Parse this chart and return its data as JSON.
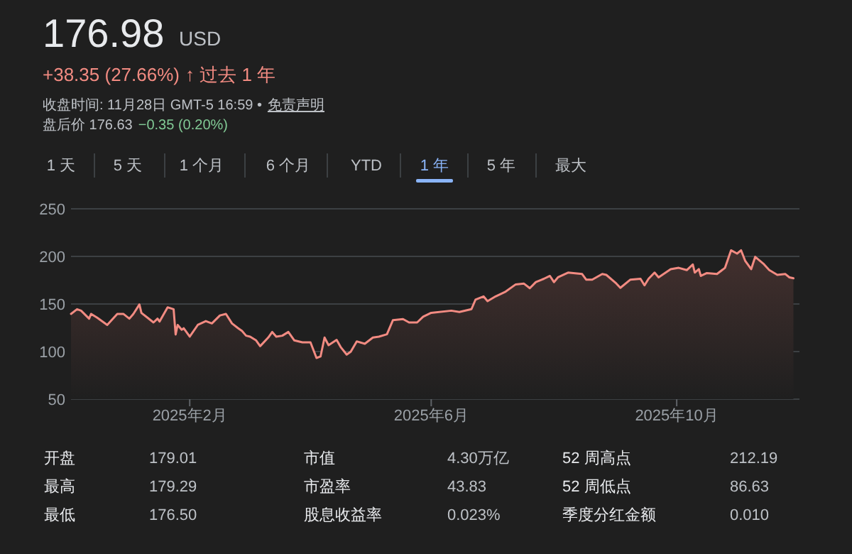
{
  "chart_data": {
    "type": "area",
    "title": "176.98",
    "annotations": [
      "USD",
      "+38.35 (27.66%)",
      "↑ 过去 1 年",
      "收盘时间: 11月28日 GMT-5 16:59 •",
      "免责声明",
      "盘后价 176.63",
      "−0.35 (0.20%)",
      "1 天",
      "5 天",
      "1 个月",
      "6 个月",
      "YTD",
      "1 年",
      "5 年",
      "最大",
      "开盘",
      "179.01",
      "市值",
      "4.30万亿",
      "52 周高点",
      "212.19",
      "最高",
      "179.29",
      "市盈率",
      "43.83",
      "52 周低点",
      "86.63",
      "最低",
      "176.50",
      "股息收益率",
      "0.023%",
      "季度分红金额",
      "0.010"
    ],
    "x": [
      "2024-12-04",
      "2024-12-07",
      "2024-12-09",
      "2024-12-13",
      "2024-12-14",
      "2024-12-17",
      "2024-12-22",
      "2024-12-27",
      "2024-12-30",
      "2025-01-02",
      "2025-01-04",
      "2025-01-07",
      "2025-01-08",
      "2025-01-11",
      "2025-01-14",
      "2025-01-16",
      "2025-01-17",
      "2025-01-21",
      "2025-01-24",
      "2025-01-25",
      "2025-01-26",
      "2025-01-28",
      "2025-01-29",
      "2025-02-01",
      "2025-02-05",
      "2025-02-09",
      "2025-02-12",
      "2025-02-16",
      "2025-02-19",
      "2025-02-22",
      "2025-02-25",
      "2025-02-27",
      "2025-03-01",
      "2025-03-03",
      "2025-03-06",
      "2025-03-08",
      "2025-03-12",
      "2025-03-14",
      "2025-03-16",
      "2025-03-19",
      "2025-03-22",
      "2025-03-25",
      "2025-03-29",
      "2025-04-02",
      "2025-04-05",
      "2025-04-07",
      "2025-04-09",
      "2025-04-11",
      "2025-04-15",
      "2025-04-17",
      "2025-04-20",
      "2025-04-22",
      "2025-04-25",
      "2025-04-29",
      "2025-05-03",
      "2025-05-06",
      "2025-05-10",
      "2025-05-13",
      "2025-05-18",
      "2025-05-21",
      "2025-05-25",
      "2025-05-28",
      "2025-06-01",
      "2025-06-11",
      "2025-06-15",
      "2025-06-21",
      "2025-06-23",
      "2025-06-27",
      "2025-06-29",
      "2025-07-03",
      "2025-07-08",
      "2025-07-13",
      "2025-07-17",
      "2025-07-20",
      "2025-07-23",
      "2025-07-27",
      "2025-07-30",
      "2025-08-01",
      "2025-08-03",
      "2025-08-08",
      "2025-08-15",
      "2025-08-17",
      "2025-08-20",
      "2025-08-25",
      "2025-08-27",
      "2025-09-01",
      "2025-09-03",
      "2025-09-08",
      "2025-09-13",
      "2025-09-15",
      "2025-09-17",
      "2025-09-20",
      "2025-09-22",
      "2025-09-28",
      "2025-10-02",
      "2025-10-06",
      "2025-10-09",
      "2025-10-10",
      "2025-10-12",
      "2025-10-13",
      "2025-10-16",
      "2025-10-21",
      "2025-10-25",
      "2025-10-28",
      "2025-10-31",
      "2025-11-02",
      "2025-11-04",
      "2025-11-07",
      "2025-11-09",
      "2025-11-13",
      "2025-11-16",
      "2025-11-20",
      "2025-11-24",
      "2025-11-26",
      "2025-11-28"
    ],
    "series": [
      {
        "color": "#f28b82",
        "values": [
          139.6,
          144.5,
          143,
          134.6,
          139.6,
          135.6,
          128,
          139.6,
          139.6,
          134.6,
          139.6,
          149.5,
          140.6,
          135.6,
          130.6,
          134.6,
          131.6,
          146.5,
          144.5,
          118,
          128,
          123,
          124.5,
          115.7,
          128,
          132,
          129.6,
          138,
          139.6,
          129.6,
          124.6,
          121.6,
          116.7,
          115.7,
          111.7,
          105.7,
          114.7,
          120.6,
          115.7,
          116.7,
          120.6,
          111.7,
          109.7,
          109.7,
          93.3,
          94.8,
          114.7,
          106.7,
          112.3,
          104.8,
          96.8,
          99.8,
          110.7,
          108.2,
          114.7,
          115.7,
          118.2,
          133.1,
          134.1,
          130.6,
          130.6,
          136.6,
          140.7,
          143,
          141.6,
          144.6,
          154.5,
          158,
          153,
          158,
          163,
          170.6,
          171.5,
          166.6,
          173,
          176.5,
          179.5,
          173,
          178,
          183,
          181.5,
          175.6,
          175.6,
          181.5,
          180.6,
          171.5,
          167,
          175.6,
          176.5,
          169.6,
          176.5,
          183,
          178,
          186.6,
          188,
          185.6,
          191.5,
          183,
          186.6,
          179.5,
          182.5,
          181.5,
          188,
          206.4,
          203,
          206.4,
          195.5,
          186.6,
          199.5,
          192.5,
          185.6,
          180.6,
          181.5,
          178,
          177
        ]
      }
    ],
    "xlim": [
      "2024-12-04",
      "2025-12-01"
    ],
    "xticks": [
      {
        "value": "2025-02-01",
        "label": "2025年2月"
      },
      {
        "value": "2025-06-01",
        "label": "2025年6月"
      },
      {
        "value": "2025-10-01",
        "label": "2025年10月"
      }
    ],
    "ylim": [
      50,
      250
    ],
    "yticks": [
      50,
      100,
      150,
      200,
      250
    ],
    "grid": "y"
  }
}
